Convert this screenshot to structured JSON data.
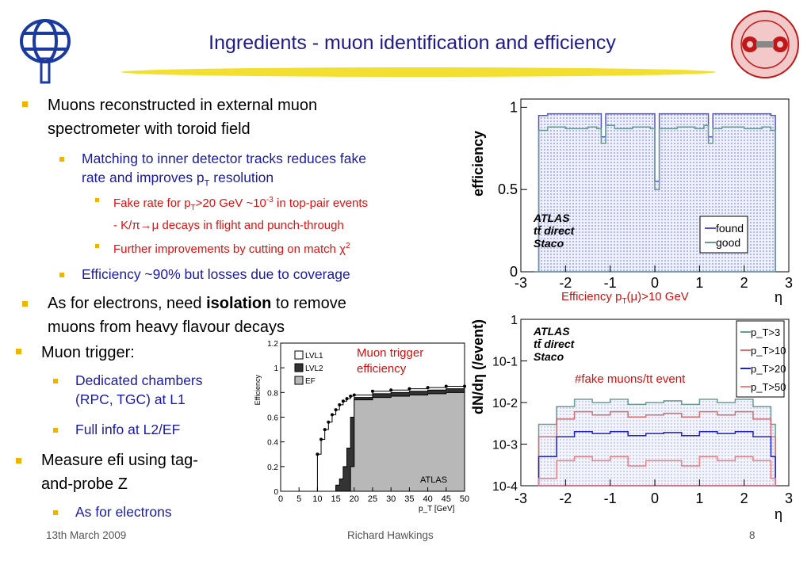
{
  "slide": {
    "title": "Ingredients - muon identification and efficiency",
    "footer": {
      "date": "13th March 2009",
      "author": "Richard Hawkings",
      "page": "8"
    }
  },
  "bullets": {
    "b1_line1": "Muons reconstructed in external muon",
    "b1_line2": "spectrometer with toroid field",
    "b1a_line1": "Matching to inner detector tracks reduces fake",
    "b1a_line2_pre": "rate and improves p",
    "b1a_line2_sub": "T",
    "b1a_line2_post": " resolution",
    "b1a1_line1_pre": "Fake rate for p",
    "b1a1_line1_sub": "T",
    "b1a1_line1_mid": ">20 GeV ~10",
    "b1a1_line1_sup": "-3",
    "b1a1_line1_post": " in top-pair events",
    "b1a1_line2": "- K/π→μ decays in flight and punch-through",
    "b1a2_pre": "Further improvements by cutting on match χ",
    "b1a2_sup": "2",
    "b1b": "Efficiency ~90% but losses due to coverage",
    "b2_line1_pre": "As for electrons, need ",
    "b2_line1_bold": "isolation",
    "b2_line1_post": " to remove",
    "b2_line2": "muons from heavy flavour decays",
    "b3": "Muon trigger:",
    "b3a_line1": "Dedicated chambers",
    "b3a_line2": "(RPC, TGC) at L1",
    "b3b": "Full info at L2/EF",
    "b4_line1": "Measure efi using tag-",
    "b4_line2": "and-probe Z",
    "b4a": "As for electrons"
  },
  "captions": {
    "eff_pre": "Efficiency p",
    "eff_sub": "T",
    "eff_post": "(μ)>10 GeV",
    "trigger_line1": "Muon trigger",
    "trigger_line2": "efficiency",
    "fake": "#fake muons/tt event"
  },
  "chart_data": [
    {
      "type": "area",
      "ylabel": "efficiency",
      "xlabel": "η",
      "xlim": [
        -3,
        3
      ],
      "ylim": [
        0,
        1.05
      ],
      "x_ticks": [
        "-3",
        "-2",
        "-1",
        "0",
        "1",
        "2",
        "3"
      ],
      "y_ticks": [
        "0",
        "0.5",
        "1"
      ],
      "annotation": [
        "ATLAS",
        "tt̄ direct",
        "Staco"
      ],
      "legend": [
        "found",
        "good"
      ],
      "legend_position": "bottom-right",
      "series": [
        {
          "name": "found",
          "x": [
            -2.7,
            -2.6,
            -2.4,
            -2.0,
            -1.5,
            -1.3,
            -1.2,
            -1.1,
            -0.9,
            -0.5,
            -0.1,
            0.0,
            0.1,
            0.5,
            0.9,
            1.1,
            1.2,
            1.3,
            1.5,
            2.0,
            2.4,
            2.6,
            2.7
          ],
          "y": [
            0,
            0.95,
            0.96,
            0.96,
            0.96,
            0.96,
            0.82,
            0.96,
            0.96,
            0.96,
            0.96,
            0.55,
            0.96,
            0.96,
            0.96,
            0.96,
            0.82,
            0.96,
            0.96,
            0.96,
            0.96,
            0.95,
            0
          ]
        },
        {
          "name": "good",
          "x": [
            -2.7,
            -2.6,
            -2.4,
            -2.0,
            -1.5,
            -1.3,
            -1.2,
            -1.1,
            -0.9,
            -0.5,
            -0.1,
            0.0,
            0.1,
            0.5,
            0.9,
            1.1,
            1.2,
            1.3,
            1.5,
            2.0,
            2.4,
            2.6,
            2.7
          ],
          "y": [
            0,
            0.86,
            0.88,
            0.87,
            0.88,
            0.87,
            0.78,
            0.89,
            0.87,
            0.88,
            0.87,
            0.5,
            0.87,
            0.88,
            0.87,
            0.89,
            0.78,
            0.87,
            0.88,
            0.87,
            0.88,
            0.86,
            0
          ]
        }
      ]
    },
    {
      "type": "line",
      "ylabel": "Efficiency",
      "xlabel": "p_T [GeV]",
      "xlim": [
        0,
        50
      ],
      "ylim": [
        0,
        1.2
      ],
      "x_ticks": [
        "0",
        "5",
        "10",
        "15",
        "20",
        "25",
        "30",
        "35",
        "40",
        "45",
        "50"
      ],
      "y_ticks": [
        "0",
        "0.2",
        "0.4",
        "0.6",
        "0.8",
        "1",
        "1.2"
      ],
      "legend": [
        "LVL1",
        "LVL2",
        "EF"
      ],
      "legend_position": "top-left",
      "annotation": "ATLAS",
      "series": [
        {
          "name": "LVL1",
          "x": [
            10,
            11,
            12,
            13,
            14,
            15,
            16,
            17,
            18,
            19,
            20,
            25,
            30,
            35,
            40,
            45,
            50
          ],
          "y": [
            0.3,
            0.42,
            0.5,
            0.56,
            0.62,
            0.66,
            0.7,
            0.73,
            0.75,
            0.77,
            0.78,
            0.81,
            0.82,
            0.83,
            0.84,
            0.85,
            0.85
          ]
        },
        {
          "name": "LVL2",
          "x": [
            15,
            16,
            17,
            18,
            19,
            20,
            25,
            30,
            35,
            40,
            45,
            50
          ],
          "y": [
            0.05,
            0.1,
            0.2,
            0.35,
            0.6,
            0.76,
            0.79,
            0.8,
            0.81,
            0.82,
            0.83,
            0.84
          ]
        },
        {
          "name": "EF",
          "x": [
            19,
            20,
            25,
            30,
            35,
            40,
            45,
            50
          ],
          "y": [
            0.2,
            0.74,
            0.76,
            0.77,
            0.78,
            0.79,
            0.8,
            0.81
          ]
        }
      ]
    },
    {
      "type": "line",
      "ylabel": "dN/dη (/event)",
      "xlabel": "η",
      "xlim": [
        -3,
        3
      ],
      "ylim": [
        0.0001,
        1
      ],
      "y_scale": "log",
      "x_ticks": [
        "-3",
        "-2",
        "-1",
        "0",
        "1",
        "2",
        "3"
      ],
      "y_ticks": [
        "10^-4",
        "10^-3",
        "10^-2",
        "10^-1",
        "1"
      ],
      "annotation": [
        "ATLAS",
        "tt̄ direct",
        "Staco"
      ],
      "legend": [
        "p_T>3",
        "p_T>10",
        "p_T>20",
        "p_T>50"
      ],
      "legend_position": "top-right",
      "series": [
        {
          "name": "p_T>3",
          "x": [
            -2.6,
            -2.2,
            -1.8,
            -1.4,
            -1.0,
            -0.6,
            -0.2,
            0.2,
            0.6,
            1.0,
            1.4,
            1.8,
            2.2,
            2.6
          ],
          "y": [
            0.003,
            0.008,
            0.012,
            0.01,
            0.012,
            0.009,
            0.01,
            0.011,
            0.009,
            0.012,
            0.01,
            0.012,
            0.008,
            0.003
          ]
        },
        {
          "name": "p_T>10",
          "x": [
            -2.6,
            -2.2,
            -1.8,
            -1.4,
            -1.0,
            -0.6,
            -0.2,
            0.2,
            0.6,
            1.0,
            1.4,
            1.8,
            2.2,
            2.6
          ],
          "y": [
            0.0015,
            0.004,
            0.006,
            0.005,
            0.006,
            0.0045,
            0.005,
            0.0055,
            0.0045,
            0.006,
            0.005,
            0.006,
            0.004,
            0.0015
          ]
        },
        {
          "name": "p_T>20",
          "x": [
            -2.6,
            -2.2,
            -1.8,
            -1.4,
            -1.0,
            -0.6,
            -0.2,
            0.2,
            0.6,
            1.0,
            1.4,
            1.8,
            2.2,
            2.6
          ],
          "y": [
            0.0005,
            0.0015,
            0.002,
            0.0018,
            0.002,
            0.0016,
            0.0018,
            0.0019,
            0.0016,
            0.002,
            0.0018,
            0.002,
            0.0015,
            0.0005
          ]
        },
        {
          "name": "p_T>50",
          "x": [
            -2.6,
            -2.2,
            -1.8,
            -1.4,
            -1.0,
            -0.6,
            -0.2,
            0.2,
            0.6,
            1.0,
            1.4,
            1.8,
            2.2,
            2.6
          ],
          "y": [
            0.00015,
            0.0004,
            0.0005,
            0.0004,
            0.0005,
            0.0003,
            0.0004,
            0.0004,
            0.0003,
            0.0005,
            0.0004,
            0.0005,
            0.0004,
            0.00015
          ]
        }
      ]
    }
  ],
  "colors": {
    "title": "#1f1a8a",
    "bullet_l2": "#1a1aa8",
    "bullet_l3": "#e01010",
    "bullet_square": "#f0b400",
    "found": "#5050d8",
    "good": "#6a9a94",
    "pt3": "#6a9a94",
    "pt10": "#d07070",
    "pt20": "#2020c0",
    "pt50": "#f08080"
  }
}
